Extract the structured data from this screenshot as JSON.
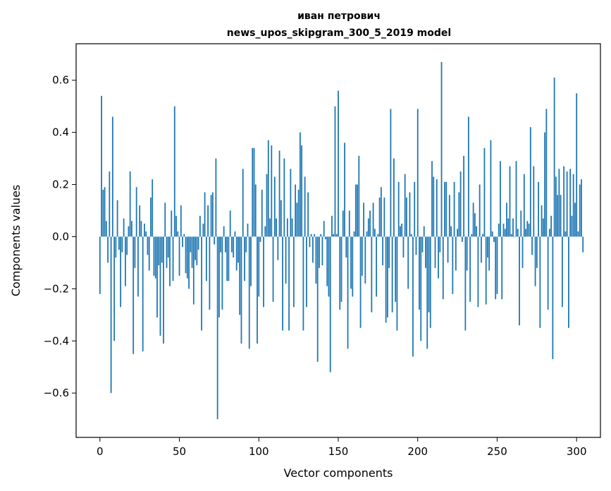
{
  "chart_data": {
    "type": "bar",
    "title_line1": "иван петрович",
    "title_line2": "news_upos_skipgram_300_5_2019 model",
    "xlabel": "Vector components",
    "ylabel": "Components values",
    "xlim": [
      -15,
      315
    ],
    "ylim": [
      -0.77,
      0.74
    ],
    "x_ticks": [
      0,
      50,
      100,
      150,
      200,
      250,
      300
    ],
    "y_ticks": [
      -0.6,
      -0.4,
      -0.2,
      0.0,
      0.2,
      0.4,
      0.6
    ],
    "y_tick_labels": [
      "−0.6",
      "−0.4",
      "−0.2",
      "0.0",
      "0.2",
      "0.4",
      "0.6"
    ],
    "grid": false,
    "bar_color": "#1f77b4",
    "values": [
      -0.22,
      0.54,
      0.18,
      0.19,
      0.06,
      -0.1,
      0.25,
      -0.6,
      0.46,
      -0.4,
      -0.08,
      0.14,
      -0.05,
      -0.27,
      -0.06,
      0.07,
      -0.19,
      -0.07,
      0.04,
      0.25,
      0.06,
      -0.45,
      -0.12,
      0.19,
      -0.23,
      0.12,
      0.06,
      -0.44,
      0.05,
      0.02,
      -0.07,
      -0.13,
      0.15,
      0.22,
      -0.15,
      -0.16,
      -0.31,
      -0.11,
      -0.38,
      -0.1,
      -0.41,
      0.13,
      -0.12,
      -0.08,
      -0.19,
      0.1,
      -0.17,
      0.5,
      0.08,
      0.02,
      -0.15,
      0.12,
      -0.04,
      0.01,
      -0.14,
      -0.16,
      -0.2,
      -0.06,
      -0.12,
      -0.26,
      -0.09,
      -0.11,
      -0.05,
      0.08,
      -0.36,
      0.05,
      0.17,
      -0.17,
      0.12,
      -0.28,
      0.16,
      0.17,
      -0.03,
      0.3,
      -0.7,
      -0.31,
      -0.06,
      -0.28,
      0.04,
      -0.06,
      -0.17,
      -0.17,
      0.1,
      -0.06,
      -0.08,
      0.02,
      -0.13,
      -0.1,
      -0.3,
      -0.41,
      0.26,
      -0.17,
      -0.06,
      0.05,
      -0.43,
      -0.19,
      0.34,
      0.34,
      0.2,
      -0.41,
      -0.23,
      -0.02,
      0.18,
      -0.27,
      0.04,
      0.24,
      0.37,
      0.07,
      0.35,
      -0.25,
      0.23,
      0.07,
      -0.09,
      0.33,
      0.14,
      -0.36,
      0.3,
      -0.18,
      0.07,
      -0.36,
      0.26,
      0.07,
      -0.27,
      0.2,
      0.13,
      0.18,
      0.4,
      0.35,
      -0.36,
      0.23,
      -0.27,
      0.17,
      -0.04,
      0.01,
      -0.1,
      0.01,
      -0.18,
      -0.48,
      -0.12,
      0.01,
      -0.11,
      0.06,
      -0.01,
      -0.19,
      -0.23,
      -0.52,
      0.08,
      0.01,
      0.5,
      0.01,
      0.56,
      -0.28,
      -0.25,
      0.1,
      0.36,
      -0.08,
      -0.43,
      0.1,
      -0.2,
      -0.23,
      0.02,
      0.2,
      0.2,
      0.31,
      -0.35,
      -0.15,
      0.13,
      -0.18,
      0.02,
      0.07,
      0.1,
      -0.29,
      0.13,
      0.03,
      -0.23,
      0.01,
      0.15,
      0.19,
      -0.11,
      0.15,
      -0.33,
      -0.31,
      -0.12,
      0.49,
      -0.29,
      0.3,
      -0.25,
      -0.36,
      0.21,
      0.04,
      0.05,
      -0.08,
      0.24,
      0.15,
      -0.2,
      0.17,
      0.01,
      -0.46,
      0.21,
      -0.07,
      0.49,
      -0.28,
      -0.4,
      -0.06,
      0.04,
      -0.12,
      -0.43,
      -0.29,
      -0.35,
      0.29,
      0.23,
      -0.12,
      0.22,
      -0.16,
      -0.06,
      0.67,
      -0.24,
      0.21,
      0.21,
      -0.1,
      0.16,
      0.04,
      -0.22,
      0.21,
      -0.13,
      0.03,
      0.17,
      0.25,
      -0.02,
      0.31,
      -0.36,
      -0.13,
      0.46,
      -0.25,
      0.01,
      0.13,
      0.09,
      0.04,
      -0.27,
      0.2,
      -0.1,
      0.01,
      0.34,
      -0.26,
      -0.08,
      -0.13,
      0.37,
      0.02,
      -0.02,
      -0.24,
      -0.22,
      0.05,
      0.29,
      -0.24,
      0.05,
      0.03,
      0.13,
      0.07,
      0.27,
      0.01,
      0.07,
      0.0,
      0.29,
      0.03,
      -0.34,
      0.1,
      -0.12,
      0.24,
      0.03,
      0.06,
      0.05,
      0.42,
      -0.07,
      0.27,
      -0.19,
      -0.12,
      0.21,
      -0.35,
      0.12,
      0.07,
      0.4,
      0.49,
      -0.28,
      0.03,
      0.08,
      -0.47,
      0.61,
      0.23,
      0.16,
      0.26,
      0.16,
      -0.27,
      0.27,
      0.02,
      0.25,
      -0.35,
      0.26,
      0.08,
      0.24,
      0.13,
      0.55,
      0.02,
      0.2,
      0.22,
      -0.06
    ]
  }
}
